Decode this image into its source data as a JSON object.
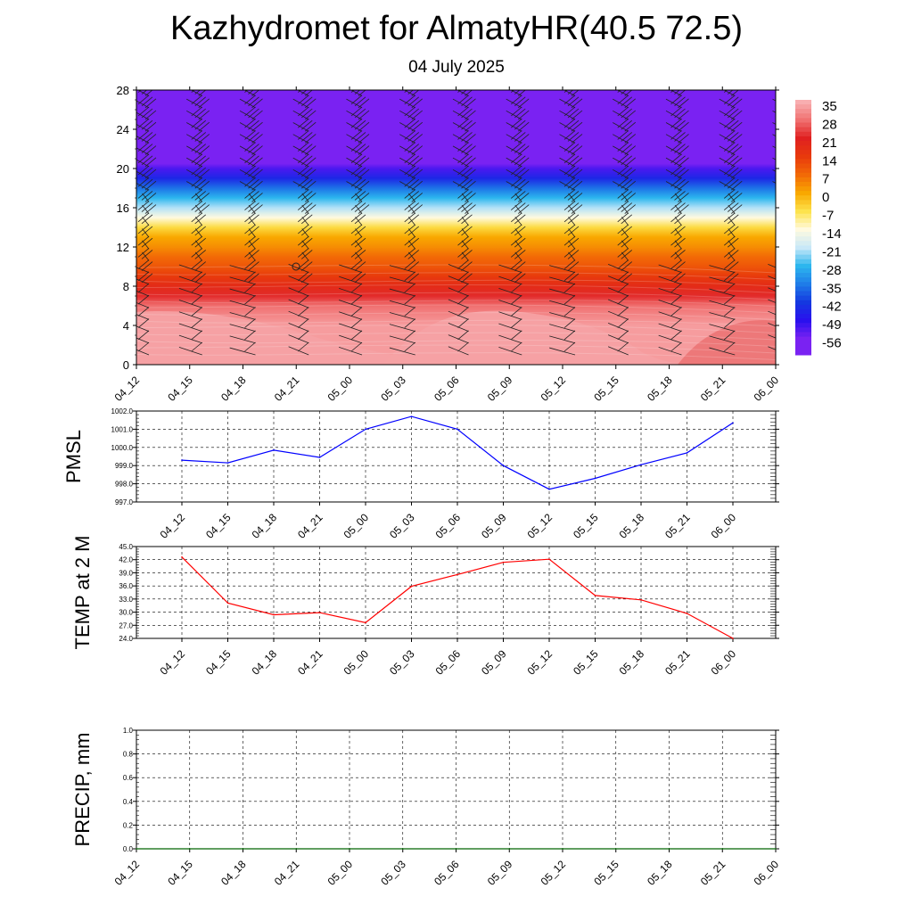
{
  "title": "Kazhydromet for AlmatyHR(40.5 72.5)",
  "subtitle": "04 July 2025",
  "chart_data": [
    {
      "type": "heatmap",
      "description_of_fields": "vertical cross-section of temperature with wind barbs",
      "x_ticks": [
        "04_12",
        "04_15",
        "04_18",
        "04_21",
        "05_00",
        "05_03",
        "05_06",
        "05_09",
        "05_12",
        "05_15",
        "05_18",
        "05_21",
        "06_00"
      ],
      "y_ticks": [
        "0",
        "4",
        "8",
        "12",
        "16",
        "20",
        "24",
        "28"
      ],
      "ylim": [
        0,
        28
      ],
      "colorbar": {
        "labels": [
          "35",
          "28",
          "21",
          "14",
          "7",
          "0",
          "-7",
          "-14",
          "-21",
          "-28",
          "-35",
          "-42",
          "-49",
          "-56"
        ],
        "colors": [
          "#f8aeb0",
          "#f07070",
          "#e02020",
          "#e83a0c",
          "#f26a06",
          "#f9a800",
          "#fde34d",
          "#fffae0",
          "#c8e8f8",
          "#2cb6ee",
          "#1f7ce8",
          "#1438e0",
          "#2a10ee",
          "#7a22f2"
        ]
      },
      "temperature_profile": {
        "heights": [
          0,
          4,
          6,
          7,
          8,
          9,
          10,
          11,
          12,
          13,
          14,
          15,
          16,
          17,
          18,
          19,
          20,
          20.5,
          21,
          21.5,
          22,
          24,
          28
        ],
        "values": [
          33,
          33,
          28,
          22,
          18,
          14,
          10,
          7,
          3,
          0,
          -6,
          -14,
          -22,
          -28,
          -36,
          -45,
          -52,
          -56,
          -58,
          -62,
          -64,
          -64,
          -64
        ]
      },
      "barb_times": [
        "04_12",
        "04_15",
        "04_18",
        "04_21",
        "05_00",
        "05_03",
        "05_06",
        "05_09",
        "05_12",
        "05_15",
        "05_18",
        "05_21",
        "06_00"
      ]
    },
    {
      "type": "line",
      "ylabel": "PMSL",
      "categories": [
        "04_12",
        "04_15",
        "04_18",
        "04_21",
        "05_00",
        "05_03",
        "05_06",
        "05_09",
        "05_12",
        "05_15",
        "05_18",
        "05_21",
        "06_00"
      ],
      "ylim": [
        997.0,
        1002.0
      ],
      "yticks": [
        "997.0",
        "998.0",
        "999.0",
        "1000.0",
        "1001.0",
        "1002.0"
      ],
      "color": "#0000ff",
      "values": [
        999.3,
        999.15,
        999.85,
        999.45,
        1001.0,
        1001.7,
        1001.0,
        999.0,
        997.7,
        998.3,
        999.05,
        999.7,
        1001.35
      ]
    },
    {
      "type": "line",
      "ylabel": "TEMP at 2 M",
      "categories": [
        "04_12",
        "04_15",
        "04_18",
        "04_21",
        "05_00",
        "05_03",
        "05_06",
        "05_09",
        "05_12",
        "05_15",
        "05_18",
        "05_21",
        "06_00"
      ],
      "ylim": [
        24.0,
        45.0
      ],
      "yticks": [
        "24.0",
        "27.0",
        "30.0",
        "33.0",
        "36.0",
        "39.0",
        "42.0",
        "45.0"
      ],
      "color": "#ff0000",
      "values": [
        42.6,
        32.1,
        29.4,
        29.9,
        27.6,
        35.9,
        38.6,
        41.4,
        42.1,
        33.8,
        32.8,
        29.7,
        24.0
      ]
    },
    {
      "type": "line",
      "ylabel": "PRECIP, mm",
      "categories": [
        "04_12",
        "04_15",
        "04_18",
        "04_21",
        "05_00",
        "05_03",
        "05_06",
        "05_09",
        "05_12",
        "05_15",
        "05_18",
        "05_21",
        "06_00"
      ],
      "ylim": [
        0.0,
        1.0
      ],
      "yticks": [
        "0.0",
        "0.2",
        "0.4",
        "0.6",
        "0.8",
        "1.0"
      ],
      "color": "#006400",
      "values": [
        0,
        0,
        0,
        0,
        0,
        0,
        0,
        0,
        0,
        0,
        0,
        0,
        0
      ]
    }
  ]
}
